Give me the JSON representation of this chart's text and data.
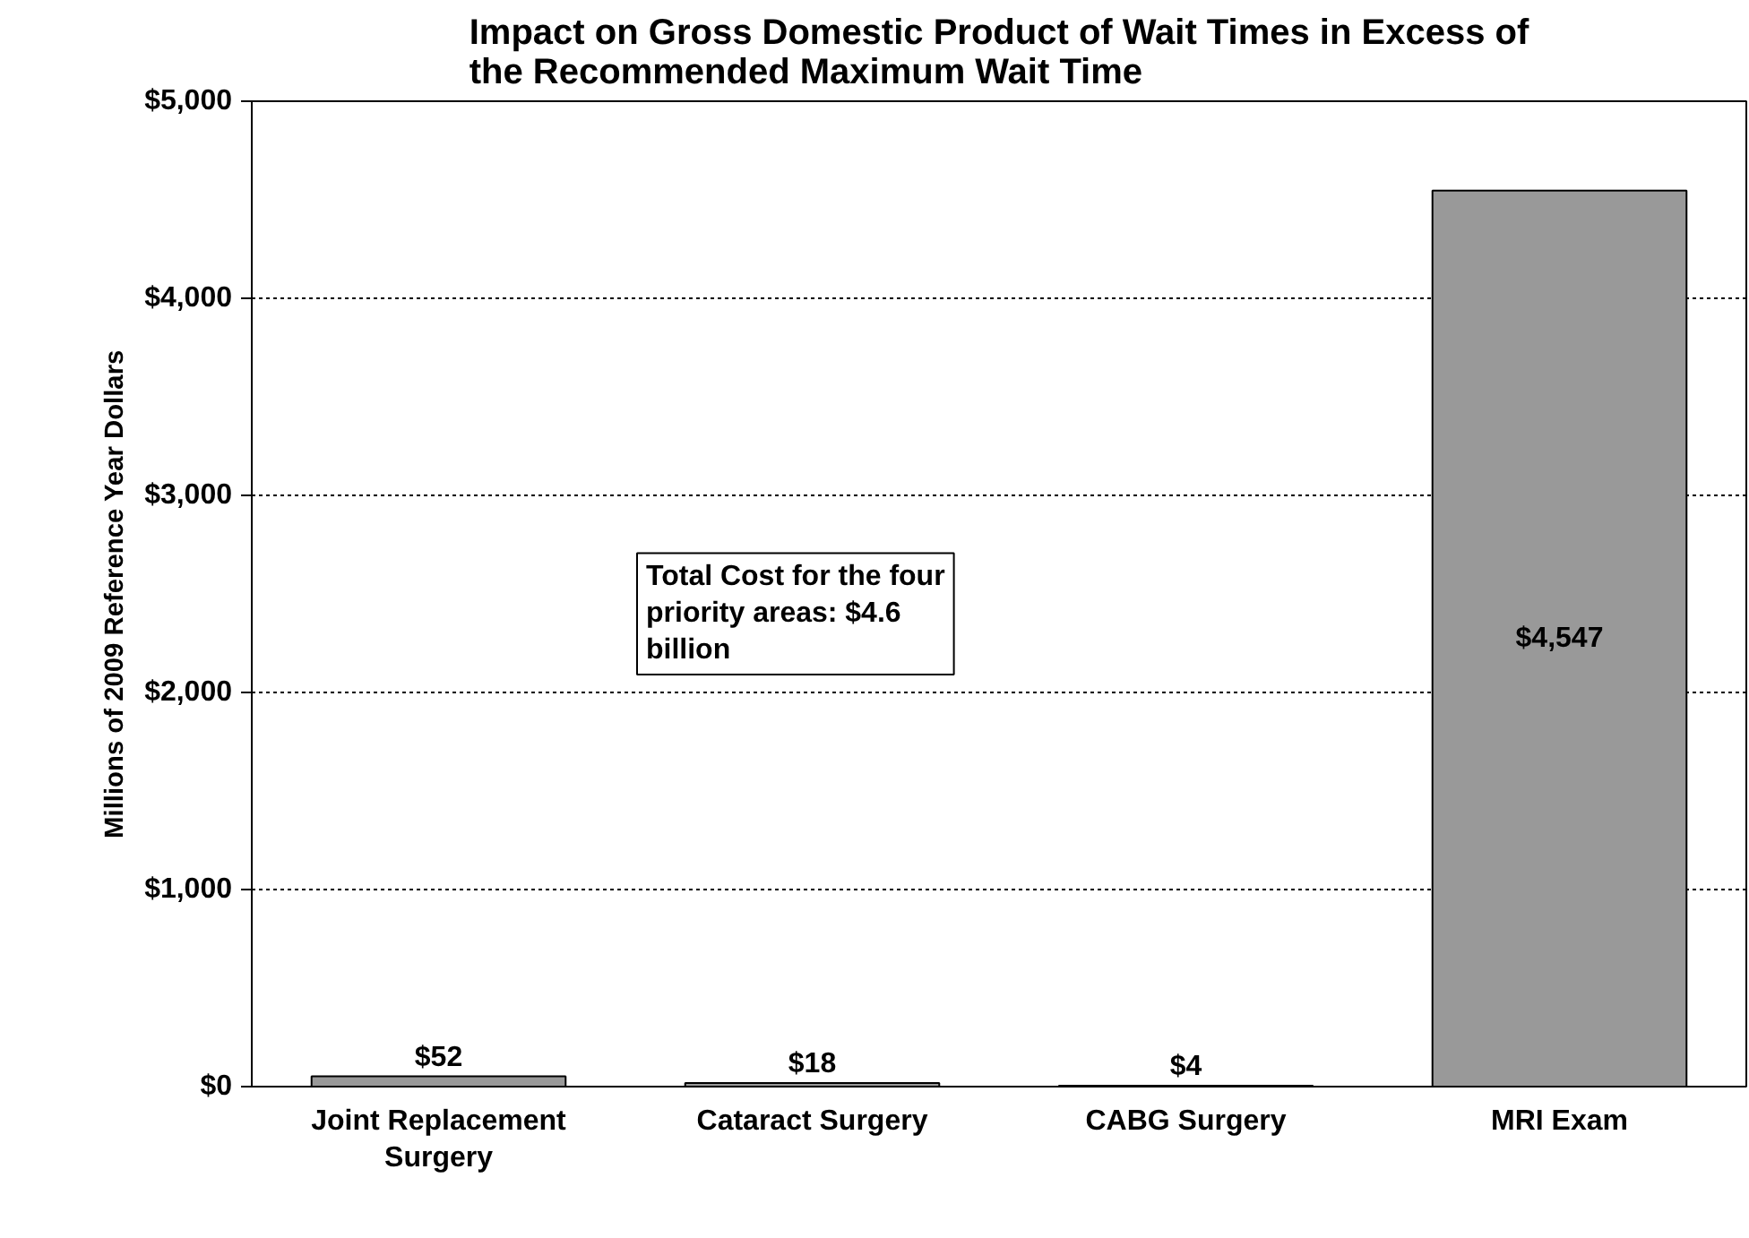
{
  "chart_data": {
    "type": "bar",
    "title": "Impact on Gross Domestic Product of Wait Times in Excess of the Recommended Maximum Wait Time",
    "ylabel": "Millions of 2009 Reference Year Dollars",
    "categories": [
      "Joint Replacement Surgery",
      "Cataract Surgery",
      "CABG Surgery",
      "MRI Exam"
    ],
    "values": [
      52,
      18,
      4,
      4547
    ],
    "value_labels": [
      "$52",
      "$18",
      "$4",
      "$4,547"
    ],
    "color": "#999999",
    "ylim": [
      0,
      5000
    ],
    "yticks": [
      {
        "value": 0,
        "label": "$0"
      },
      {
        "value": 1000,
        "label": "$1,000"
      },
      {
        "value": 2000,
        "label": "$2,000"
      },
      {
        "value": 3000,
        "label": "$3,000"
      },
      {
        "value": 4000,
        "label": "$4,000"
      },
      {
        "value": 5000,
        "label": "$5,000"
      }
    ],
    "grid": "y",
    "annotations": [
      "Total Cost for the four priority areas: $4.6 billion"
    ]
  }
}
